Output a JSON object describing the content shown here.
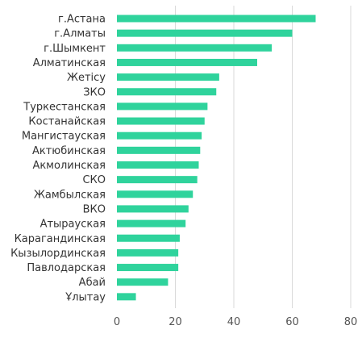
{
  "chart_data": {
    "type": "bar",
    "orientation": "horizontal",
    "categories": [
      "г.Астана",
      "г.Алматы",
      "г.Шымкент",
      "Алматинская",
      "Жетісу",
      "ЗКО",
      "Туркестанская",
      "Костанайская",
      "Мангистауская",
      "Актюбинская",
      "Акмолинская",
      "СКО",
      "Жамбылская",
      "ВКО",
      "Атырауская",
      "Карагандинская",
      "Кызылординская",
      "Павлодарская",
      "Абай",
      "Ұлытау"
    ],
    "values": [
      68,
      60,
      53,
      48,
      35,
      34,
      31,
      30,
      29,
      28.5,
      28,
      27.5,
      26,
      24.5,
      23.5,
      21.5,
      21,
      21,
      17.5,
      6.5
    ],
    "xlim": [
      0,
      80
    ],
    "xticks": [
      0,
      20,
      40,
      60,
      80
    ],
    "grid": true,
    "bar_color": "#2fd39c",
    "grid_color": "#d9d9d9"
  }
}
